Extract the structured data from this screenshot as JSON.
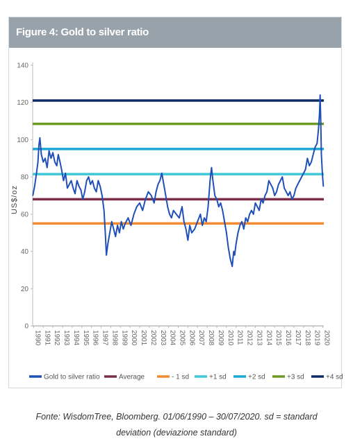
{
  "figure": {
    "title": "Figure 4: Gold to silver ratio",
    "header_color": "#98a2ab"
  },
  "caption": {
    "line1": "Fonte: WisdomTree, Bloomberg. 01/06/1990 – 30/07/2020. sd = standard",
    "line2": "deviation (deviazione standard)"
  },
  "chart_data": {
    "type": "line",
    "title": "Figure 4: Gold to silver ratio",
    "xlabel": "",
    "ylabel": "US$/oz",
    "ylim": [
      0,
      140
    ],
    "yticks": [
      0,
      20,
      40,
      60,
      80,
      100,
      120,
      140
    ],
    "xlim": [
      1990.4,
      2020.6
    ],
    "xticks": [
      "1990",
      "1991",
      "1992",
      "1993",
      "1994",
      "1995",
      "1996",
      "1997",
      "1998",
      "1999",
      "2000",
      "2001",
      "2002",
      "2003",
      "2004",
      "2005",
      "2006",
      "2007",
      "2008",
      "2009",
      "2010",
      "2011",
      "2012",
      "2013",
      "2014",
      "2015",
      "2016",
      "2017",
      "2018",
      "2019",
      "2020"
    ],
    "grid": false,
    "legend_position": "bottom",
    "series": [
      {
        "name": "Gold to silver ratio",
        "color": "#1f4fb8",
        "x": [
          1990.42,
          1990.6,
          1990.8,
          1990.95,
          1991.05,
          1991.15,
          1991.3,
          1991.5,
          1991.7,
          1991.9,
          1992.1,
          1992.3,
          1992.5,
          1992.7,
          1992.9,
          1993.05,
          1993.2,
          1993.4,
          1993.6,
          1993.8,
          1994.0,
          1994.2,
          1994.4,
          1994.6,
          1994.8,
          1995.0,
          1995.2,
          1995.4,
          1995.6,
          1995.8,
          1996.0,
          1996.2,
          1996.4,
          1996.6,
          1996.8,
          1997.0,
          1997.2,
          1997.4,
          1997.6,
          1997.8,
          1997.95,
          1998.05,
          1998.2,
          1998.4,
          1998.6,
          1998.8,
          1999.0,
          1999.2,
          1999.4,
          1999.6,
          1999.8,
          2000.0,
          2000.3,
          2000.6,
          2000.9,
          2001.2,
          2001.5,
          2001.8,
          2002.1,
          2002.4,
          2002.7,
          2003.0,
          2003.2,
          2003.4,
          2003.6,
          2003.8,
          2004.0,
          2004.2,
          2004.4,
          2004.6,
          2004.8,
          2005.0,
          2005.3,
          2005.6,
          2005.9,
          2006.1,
          2006.3,
          2006.5,
          2006.7,
          2006.9,
          2007.2,
          2007.5,
          2007.8,
          2008.0,
          2008.2,
          2008.4,
          2008.6,
          2008.8,
          2008.95,
          2009.1,
          2009.3,
          2009.5,
          2009.7,
          2009.9,
          2010.1,
          2010.3,
          2010.5,
          2010.7,
          2010.9,
          2011.1,
          2011.25,
          2011.35,
          2011.5,
          2011.7,
          2011.9,
          2012.1,
          2012.3,
          2012.5,
          2012.7,
          2012.9,
          2013.1,
          2013.3,
          2013.5,
          2013.7,
          2013.9,
          2014.1,
          2014.3,
          2014.5,
          2014.7,
          2014.9,
          2015.1,
          2015.3,
          2015.5,
          2015.7,
          2015.9,
          2016.1,
          2016.3,
          2016.5,
          2016.7,
          2016.9,
          2017.1,
          2017.3,
          2017.5,
          2017.7,
          2017.9,
          2018.1,
          2018.3,
          2018.5,
          2018.7,
          2018.9,
          2019.1,
          2019.3,
          2019.5,
          2019.7,
          2019.9,
          2020.05,
          2020.15,
          2020.22,
          2020.28,
          2020.35,
          2020.45,
          2020.55
        ],
        "y": [
          70,
          75,
          82,
          88,
          97,
          101,
          92,
          88,
          90,
          85,
          94,
          90,
          93,
          88,
          86,
          92,
          89,
          84,
          78,
          82,
          74,
          76,
          78,
          74,
          71,
          78,
          75,
          73,
          68,
          72,
          78,
          80,
          76,
          78,
          74,
          72,
          78,
          75,
          70,
          62,
          48,
          38,
          44,
          50,
          56,
          52,
          48,
          54,
          50,
          56,
          52,
          55,
          58,
          54,
          60,
          64,
          66,
          62,
          68,
          72,
          70,
          66,
          72,
          76,
          78,
          82,
          76,
          70,
          64,
          60,
          58,
          62,
          60,
          58,
          64,
          56,
          52,
          46,
          54,
          50,
          52,
          56,
          60,
          54,
          58,
          56,
          64,
          78,
          85,
          78,
          70,
          68,
          64,
          66,
          62,
          56,
          50,
          42,
          36,
          32,
          40,
          38,
          44,
          50,
          54,
          56,
          52,
          58,
          56,
          60,
          62,
          60,
          66,
          64,
          62,
          68,
          66,
          70,
          72,
          78,
          76,
          74,
          70,
          72,
          76,
          78,
          80,
          74,
          72,
          70,
          72,
          68,
          70,
          74,
          76,
          78,
          80,
          82,
          84,
          90,
          86,
          88,
          92,
          96,
          98,
          106,
          114,
          124,
          110,
          92,
          82,
          75
        ]
      }
    ],
    "reference_lines": [
      {
        "name": "Average",
        "value": 68,
        "color": "#7b2d4a"
      },
      {
        "name": "- 1 sd",
        "value": 55,
        "color": "#f28a30"
      },
      {
        "name": "+1 sd",
        "value": 81.5,
        "color": "#3fc8d8"
      },
      {
        "name": "+2 sd",
        "value": 95,
        "color": "#1aa6d6"
      },
      {
        "name": "+3 sd",
        "value": 108.5,
        "color": "#6b9a22"
      },
      {
        "name": "+4 sd",
        "value": 121,
        "color": "#0b2a66"
      }
    ],
    "legend_labels": [
      "Gold to silver ratio",
      "Average",
      "- 1 sd",
      "+1 sd",
      "+2 sd",
      "+3 sd",
      "+4 sd"
    ]
  }
}
